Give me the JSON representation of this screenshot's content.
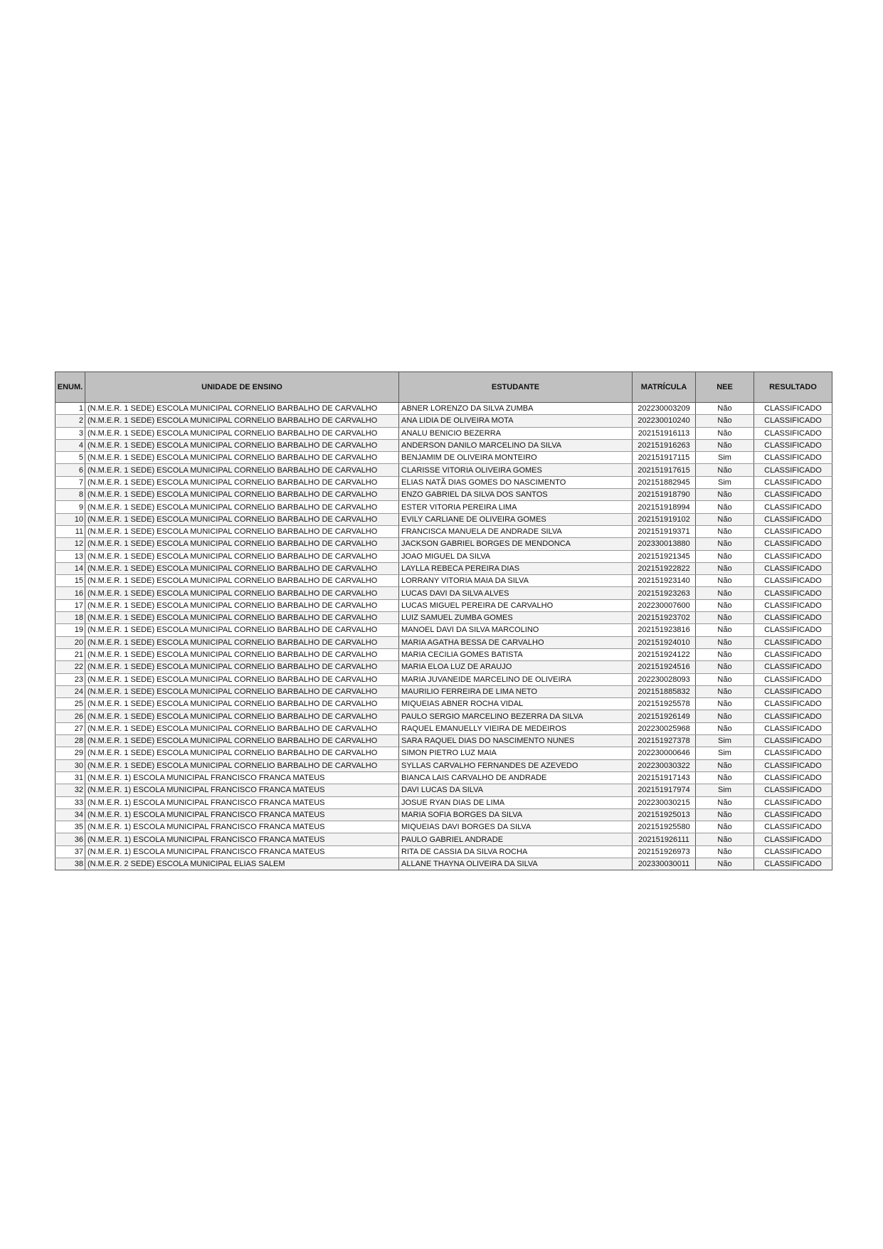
{
  "headers": [
    "ENUM.",
    "UNIDADE DE ENSINO",
    "ESTUDANTE",
    "MATRÍCULA",
    "NEE",
    "RESULTADO"
  ],
  "rows": [
    [
      "1",
      "(N.M.E.R. 1 SEDE) ESCOLA MUNICIPAL CORNELIO BARBALHO DE CARVALHO",
      "ABNER LORENZO DA SILVA ZUMBA",
      "202230003209",
      "Não",
      "CLASSIFICADO"
    ],
    [
      "2",
      "(N.M.E.R. 1 SEDE) ESCOLA MUNICIPAL CORNELIO BARBALHO DE CARVALHO",
      "ANA LIDIA DE OLIVEIRA MOTA",
      "202230010240",
      "Não",
      "CLASSIFICADO"
    ],
    [
      "3",
      "(N.M.E.R. 1 SEDE) ESCOLA MUNICIPAL CORNELIO BARBALHO DE CARVALHO",
      "ANALU BENICIO BEZERRA",
      "202151916113",
      "Não",
      "CLASSIFICADO"
    ],
    [
      "4",
      "(N.M.E.R. 1 SEDE) ESCOLA MUNICIPAL CORNELIO BARBALHO DE CARVALHO",
      "ANDERSON DANILO MARCELINO DA SILVA",
      "202151916263",
      "Não",
      "CLASSIFICADO"
    ],
    [
      "5",
      "(N.M.E.R. 1 SEDE) ESCOLA MUNICIPAL CORNELIO BARBALHO DE CARVALHO",
      "BENJAMIM DE OLIVEIRA MONTEIRO",
      "202151917115",
      "Sim",
      "CLASSIFICADO"
    ],
    [
      "6",
      "(N.M.E.R. 1 SEDE) ESCOLA MUNICIPAL CORNELIO BARBALHO DE CARVALHO",
      "CLARISSE VITORIA OLIVEIRA GOMES",
      "202151917615",
      "Não",
      "CLASSIFICADO"
    ],
    [
      "7",
      "(N.M.E.R. 1 SEDE) ESCOLA MUNICIPAL CORNELIO BARBALHO DE CARVALHO",
      "ELIAS NATÃ DIAS GOMES DO NASCIMENTO",
      "202151882945",
      "Sim",
      "CLASSIFICADO"
    ],
    [
      "8",
      "(N.M.E.R. 1 SEDE) ESCOLA MUNICIPAL CORNELIO BARBALHO DE CARVALHO",
      "ENZO GABRIEL DA SILVA DOS SANTOS",
      "202151918790",
      "Não",
      "CLASSIFICADO"
    ],
    [
      "9",
      "(N.M.E.R. 1 SEDE) ESCOLA MUNICIPAL CORNELIO BARBALHO DE CARVALHO",
      "ESTER VITORIA PEREIRA LIMA",
      "202151918994",
      "Não",
      "CLASSIFICADO"
    ],
    [
      "10",
      "(N.M.E.R. 1 SEDE) ESCOLA MUNICIPAL CORNELIO BARBALHO DE CARVALHO",
      "EVILY CARLIANE DE OLIVEIRA GOMES",
      "202151919102",
      "Não",
      "CLASSIFICADO"
    ],
    [
      "11",
      "(N.M.E.R. 1 SEDE) ESCOLA MUNICIPAL CORNELIO BARBALHO DE CARVALHO",
      "FRANCISCA MANUELA DE ANDRADE SILVA",
      "202151919371",
      "Não",
      "CLASSIFICADO"
    ],
    [
      "12",
      "(N.M.E.R. 1 SEDE) ESCOLA MUNICIPAL CORNELIO BARBALHO DE CARVALHO",
      "JACKSON GABRIEL BORGES DE MENDONCA",
      "202330013880",
      "Não",
      "CLASSIFICADO"
    ],
    [
      "13",
      "(N.M.E.R. 1 SEDE) ESCOLA MUNICIPAL CORNELIO BARBALHO DE CARVALHO",
      "JOAO MIGUEL DA SILVA",
      "202151921345",
      "Não",
      "CLASSIFICADO"
    ],
    [
      "14",
      "(N.M.E.R. 1 SEDE) ESCOLA MUNICIPAL CORNELIO BARBALHO DE CARVALHO",
      "LAYLLA REBECA PEREIRA DIAS",
      "202151922822",
      "Não",
      "CLASSIFICADO"
    ],
    [
      "15",
      "(N.M.E.R. 1 SEDE) ESCOLA MUNICIPAL CORNELIO BARBALHO DE CARVALHO",
      "LORRANY VITORIA MAIA DA SILVA",
      "202151923140",
      "Não",
      "CLASSIFICADO"
    ],
    [
      "16",
      "(N.M.E.R. 1 SEDE) ESCOLA MUNICIPAL CORNELIO BARBALHO DE CARVALHO",
      "LUCAS DAVI DA SILVA ALVES",
      "202151923263",
      "Não",
      "CLASSIFICADO"
    ],
    [
      "17",
      "(N.M.E.R. 1 SEDE) ESCOLA MUNICIPAL CORNELIO BARBALHO DE CARVALHO",
      "LUCAS MIGUEL PEREIRA DE CARVALHO",
      "202230007600",
      "Não",
      "CLASSIFICADO"
    ],
    [
      "18",
      "(N.M.E.R. 1 SEDE) ESCOLA MUNICIPAL CORNELIO BARBALHO DE CARVALHO",
      "LUIZ SAMUEL ZUMBA GOMES",
      "202151923702",
      "Não",
      "CLASSIFICADO"
    ],
    [
      "19",
      "(N.M.E.R. 1 SEDE) ESCOLA MUNICIPAL CORNELIO BARBALHO DE CARVALHO",
      "MANOEL DAVI DA SILVA MARCOLINO",
      "202151923816",
      "Não",
      "CLASSIFICADO"
    ],
    [
      "20",
      "(N.M.E.R. 1 SEDE) ESCOLA MUNICIPAL CORNELIO BARBALHO DE CARVALHO",
      "MARIA AGATHA BESSA DE CARVALHO",
      "202151924010",
      "Não",
      "CLASSIFICADO"
    ],
    [
      "21",
      "(N.M.E.R. 1 SEDE) ESCOLA MUNICIPAL CORNELIO BARBALHO DE CARVALHO",
      "MARIA CECILIA GOMES BATISTA",
      "202151924122",
      "Não",
      "CLASSIFICADO"
    ],
    [
      "22",
      "(N.M.E.R. 1 SEDE) ESCOLA MUNICIPAL CORNELIO BARBALHO DE CARVALHO",
      "MARIA ELOA LUZ DE ARAUJO",
      "202151924516",
      "Não",
      "CLASSIFICADO"
    ],
    [
      "23",
      "(N.M.E.R. 1 SEDE) ESCOLA MUNICIPAL CORNELIO BARBALHO DE CARVALHO",
      "MARIA JUVANEIDE MARCELINO DE OLIVEIRA",
      "202230028093",
      "Não",
      "CLASSIFICADO"
    ],
    [
      "24",
      "(N.M.E.R. 1 SEDE) ESCOLA MUNICIPAL CORNELIO BARBALHO DE CARVALHO",
      "MAURILIO FERREIRA DE LIMA NETO",
      "202151885832",
      "Não",
      "CLASSIFICADO"
    ],
    [
      "25",
      "(N.M.E.R. 1 SEDE) ESCOLA MUNICIPAL CORNELIO BARBALHO DE CARVALHO",
      "MIQUEIAS ABNER ROCHA VIDAL",
      "202151925578",
      "Não",
      "CLASSIFICADO"
    ],
    [
      "26",
      "(N.M.E.R. 1 SEDE) ESCOLA MUNICIPAL CORNELIO BARBALHO DE CARVALHO",
      "PAULO SERGIO MARCELINO BEZERRA DA SILVA",
      "202151926149",
      "Não",
      "CLASSIFICADO"
    ],
    [
      "27",
      "(N.M.E.R. 1 SEDE) ESCOLA MUNICIPAL CORNELIO BARBALHO DE CARVALHO",
      "RAQUEL EMANUELLY VIEIRA DE MEDEIROS",
      "202230025968",
      "Não",
      "CLASSIFICADO"
    ],
    [
      "28",
      "(N.M.E.R. 1 SEDE) ESCOLA MUNICIPAL CORNELIO BARBALHO DE CARVALHO",
      "SARA RAQUEL DIAS DO NASCIMENTO NUNES",
      "202151927378",
      "Sim",
      "CLASSIFICADO"
    ],
    [
      "29",
      "(N.M.E.R. 1 SEDE) ESCOLA MUNICIPAL CORNELIO BARBALHO DE CARVALHO",
      "SIMON PIETRO LUZ MAIA",
      "202230000646",
      "Sim",
      "CLASSIFICADO"
    ],
    [
      "30",
      "(N.M.E.R. 1 SEDE) ESCOLA MUNICIPAL CORNELIO BARBALHO DE CARVALHO",
      "SYLLAS CARVALHO FERNANDES DE AZEVEDO",
      "202230030322",
      "Não",
      "CLASSIFICADO"
    ],
    [
      "31",
      "(N.M.E.R. 1) ESCOLA MUNICIPAL FRANCISCO FRANCA MATEUS",
      "BIANCA LAIS CARVALHO DE ANDRADE",
      "202151917143",
      "Não",
      "CLASSIFICADO"
    ],
    [
      "32",
      "(N.M.E.R. 1) ESCOLA MUNICIPAL FRANCISCO FRANCA MATEUS",
      "DAVI LUCAS DA SILVA",
      "202151917974",
      "Sim",
      "CLASSIFICADO"
    ],
    [
      "33",
      "(N.M.E.R. 1) ESCOLA MUNICIPAL FRANCISCO FRANCA MATEUS",
      "JOSUE RYAN DIAS DE LIMA",
      "202230030215",
      "Não",
      "CLASSIFICADO"
    ],
    [
      "34",
      "(N.M.E.R. 1) ESCOLA MUNICIPAL FRANCISCO FRANCA MATEUS",
      "MARIA SOFIA BORGES DA SILVA",
      "202151925013",
      "Não",
      "CLASSIFICADO"
    ],
    [
      "35",
      "(N.M.E.R. 1) ESCOLA MUNICIPAL FRANCISCO FRANCA MATEUS",
      "MIQUEIAS DAVI BORGES DA SILVA",
      "202151925580",
      "Não",
      "CLASSIFICADO"
    ],
    [
      "36",
      "(N.M.E.R. 1) ESCOLA MUNICIPAL FRANCISCO FRANCA MATEUS",
      "PAULO GABRIEL ANDRADE",
      "202151926111",
      "Não",
      "CLASSIFICADO"
    ],
    [
      "37",
      "(N.M.E.R. 1) ESCOLA MUNICIPAL FRANCISCO FRANCA MATEUS",
      "RITA DE CASSIA DA SILVA ROCHA",
      "202151926973",
      "Não",
      "CLASSIFICADO"
    ],
    [
      "38",
      "(N.M.E.R. 2 SEDE) ESCOLA MUNICIPAL ELIAS SALEM",
      "ALLANE THAYNA OLIVEIRA DA SILVA",
      "202330030011",
      "Não",
      "CLASSIFICADO"
    ]
  ]
}
